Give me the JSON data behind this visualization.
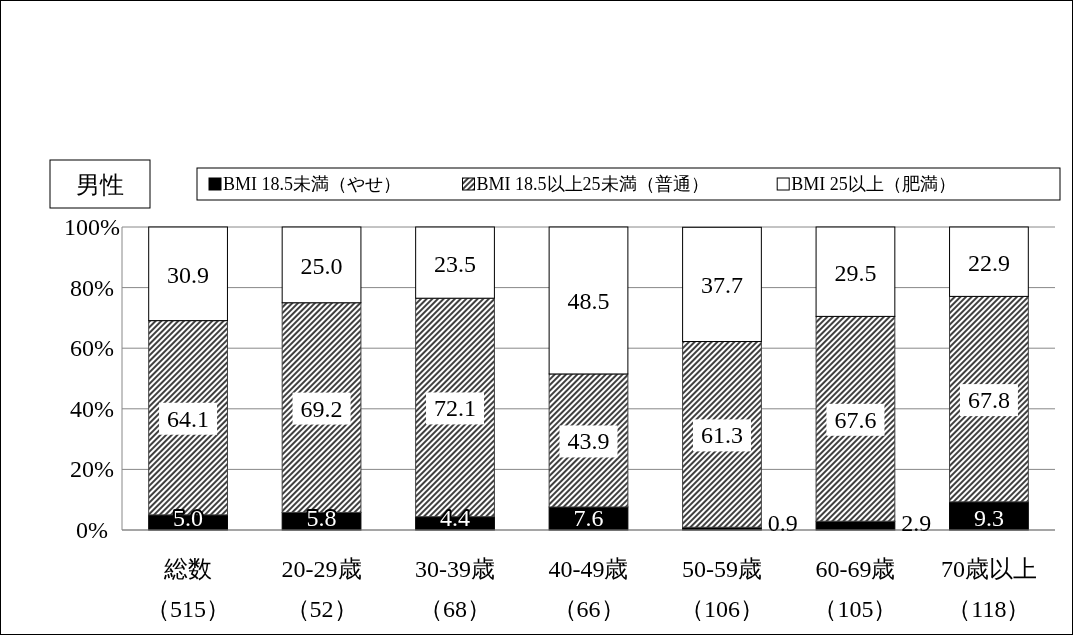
{
  "chart_data": {
    "type": "bar",
    "stacked": true,
    "title": "男性",
    "categories": [
      "総数（515）",
      "20-29歳（52）",
      "30-39歳（68）",
      "40-49歳（66）",
      "50-59歳（106）",
      "60-69歳（105）",
      "70歳以上（118）"
    ],
    "series": [
      {
        "name": "BMI  18.5未満（やせ）",
        "color": "#000000",
        "values": [
          5.0,
          5.8,
          4.4,
          7.6,
          0.9,
          2.9,
          9.3
        ],
        "value_labels": [
          "5.0",
          "5.8",
          "4.4",
          "7.6",
          "0.9",
          "2.9",
          "9.3"
        ]
      },
      {
        "name": "BMI  18.5以上25未満（普通）",
        "color": "#404040",
        "values": [
          64.1,
          69.2,
          72.1,
          43.9,
          61.3,
          67.6,
          67.8
        ],
        "value_labels": [
          "64.1",
          "69.2",
          "72.1",
          "43.9",
          "61.3",
          "67.6",
          "67.8"
        ]
      },
      {
        "name": "BMI  25以上（肥満）",
        "color": "#ffffff",
        "values": [
          30.9,
          25.0,
          23.5,
          48.5,
          37.7,
          29.5,
          22.9
        ],
        "value_labels": [
          "30.9",
          "25.0",
          "23.5",
          "48.5",
          "37.7",
          "29.5",
          "22.9"
        ]
      }
    ],
    "ylim": [
      0,
      100
    ],
    "yticks": [
      {
        "value": 0,
        "label": "0%"
      },
      {
        "value": 20,
        "label": "20%"
      },
      {
        "value": 40,
        "label": "40%"
      },
      {
        "value": 60,
        "label": "60%"
      },
      {
        "value": 80,
        "label": "80%"
      },
      {
        "value": 100,
        "label": "100%"
      }
    ],
    "grid": "y",
    "legend": "top right"
  }
}
